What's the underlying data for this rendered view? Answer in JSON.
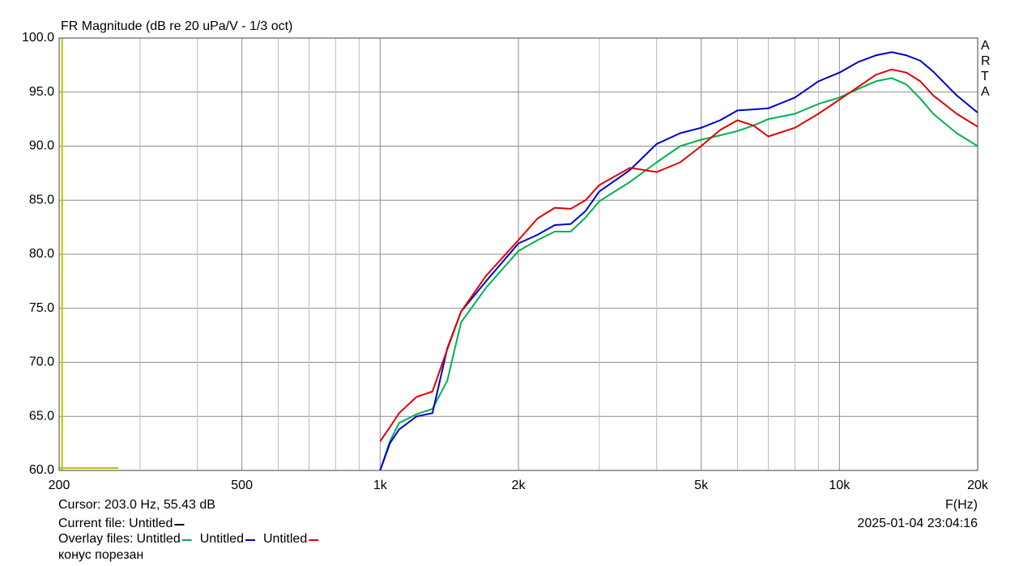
{
  "chart_data": {
    "type": "line",
    "title": "FR Magnitude (dB re 20 uPa/V - 1/3 oct)",
    "watermark": "ARTA",
    "x_label": "F(Hz)",
    "log_x": true,
    "grid": true,
    "xlim": [
      200,
      20000
    ],
    "ylim": [
      60,
      100
    ],
    "xticks": [
      200,
      500,
      {
        "value": 1000,
        "label": "1k"
      },
      {
        "value": 2000,
        "label": "2k"
      },
      {
        "value": 5000,
        "label": "5k"
      },
      {
        "value": 10000,
        "label": "10k"
      },
      {
        "value": 20000,
        "label": "20k"
      }
    ],
    "x_minor_grid": [
      300,
      400,
      600,
      700,
      800,
      900,
      3000,
      4000,
      6000,
      7000,
      8000,
      9000
    ],
    "yticks": [
      {
        "value": 60,
        "label": "60.0"
      },
      {
        "value": 65,
        "label": "65.0"
      },
      {
        "value": 70,
        "label": "70.0"
      },
      {
        "value": 75,
        "label": "75.0"
      },
      {
        "value": 80,
        "label": "80.0"
      },
      {
        "value": 85,
        "label": "85.0"
      },
      {
        "value": 90,
        "label": "90.0"
      },
      {
        "value": 95,
        "label": "95.0"
      },
      {
        "value": 100,
        "label": "100.0"
      }
    ],
    "cursor": {
      "label": "Cursor: 203.0 Hz, 55.43 dB",
      "freq": 203.0,
      "level": 55.43,
      "color": "#c0c000"
    },
    "current_file": {
      "label": "Current file: Untitled",
      "color": "#000000"
    },
    "overlay_label": "Overlay files:",
    "timestamp": "2025-01-04  23:04:16",
    "note": "конус порезан",
    "x": [
      1000,
      1050,
      1100,
      1200,
      1300,
      1400,
      1500,
      1700,
      2000,
      2200,
      2400,
      2600,
      2800,
      3000,
      3500,
      4000,
      4500,
      5000,
      5500,
      6000,
      6500,
      7000,
      8000,
      9000,
      10000,
      11000,
      12000,
      13000,
      14000,
      15000,
      16000,
      18000,
      20000
    ],
    "series": [
      {
        "name": "Untitled",
        "color": "#00b050",
        "values": [
          60.0,
          62.7,
          64.4,
          65.2,
          65.7,
          68.3,
          73.7,
          76.9,
          80.3,
          81.3,
          82.1,
          82.1,
          83.4,
          84.9,
          86.7,
          88.5,
          90.0,
          90.6,
          91.0,
          91.4,
          91.9,
          92.5,
          93.0,
          93.9,
          94.5,
          95.3,
          96.0,
          96.3,
          95.7,
          94.4,
          93.0,
          91.2,
          90.0
        ]
      },
      {
        "name": "Untitled",
        "color": "#0000cc",
        "values": [
          60.0,
          62.5,
          63.8,
          65.0,
          65.3,
          71.3,
          74.7,
          77.5,
          81.0,
          81.8,
          82.7,
          82.8,
          84.0,
          85.8,
          87.8,
          90.2,
          91.2,
          91.7,
          92.4,
          93.3,
          93.4,
          93.5,
          94.5,
          96.0,
          96.8,
          97.8,
          98.4,
          98.7,
          98.4,
          97.9,
          96.9,
          94.7,
          93.1
        ]
      },
      {
        "name": "Untitled",
        "color": "#e00000",
        "values": [
          62.7,
          64.0,
          65.3,
          66.8,
          67.3,
          71.2,
          74.7,
          78.0,
          81.3,
          83.3,
          84.3,
          84.2,
          85.0,
          86.4,
          88.0,
          87.6,
          88.5,
          90.0,
          91.5,
          92.4,
          91.9,
          90.9,
          91.7,
          93.0,
          94.3,
          95.5,
          96.6,
          97.1,
          96.8,
          96.0,
          94.7,
          93.0,
          91.8
        ]
      }
    ]
  }
}
